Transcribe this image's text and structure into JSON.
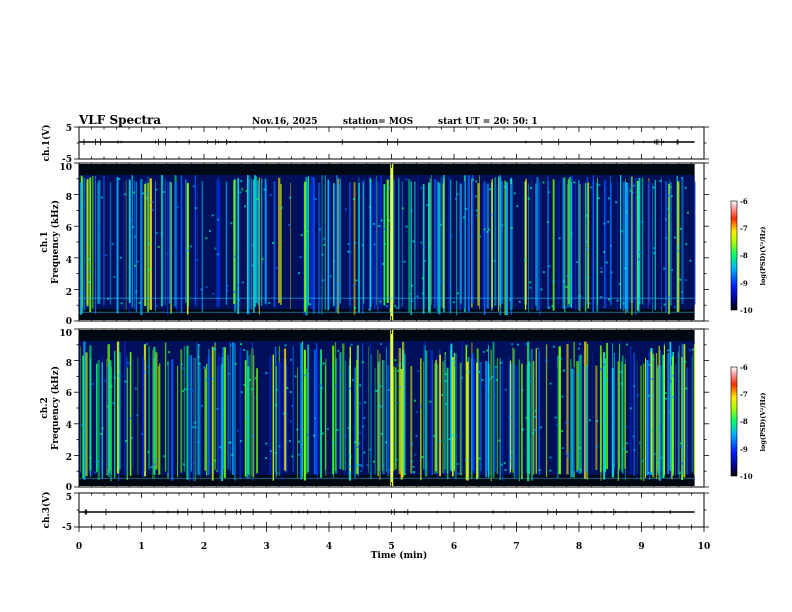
{
  "header": {
    "title": "VLF Spectra",
    "date": "Nov.16, 2025",
    "station": "station= MOS",
    "start": "start  UT  =   20: 50: 1"
  },
  "chart_data": [
    {
      "type": "line",
      "id": "ch1-waveform",
      "ylabel": "ch.1(V)",
      "ylim": [
        -5,
        5
      ],
      "yticks": [
        "5",
        "-5"
      ],
      "xlim": [
        0,
        10
      ],
      "series": [
        {
          "values_constant": 0
        }
      ]
    },
    {
      "type": "heatmap",
      "id": "ch1-spectrogram",
      "ylabel": "ch.1",
      "ylabel2": "Frequency (kHz)",
      "ylim": [
        0,
        10
      ],
      "yticks": [
        "0",
        "2",
        "4",
        "6",
        "8",
        "10"
      ],
      "xlim": [
        0,
        9.85
      ],
      "colorbar": {
        "range": [
          -10,
          -6
        ],
        "ticks": [
          "-6",
          "-7",
          "-8",
          "-9",
          "-10"
        ],
        "label": "log(PSD)(V²/Hz)"
      }
    },
    {
      "type": "heatmap",
      "id": "ch2-spectrogram",
      "ylabel": "ch.2",
      "ylabel2": "Frequency (kHz)",
      "ylim": [
        0,
        10
      ],
      "yticks": [
        "0",
        "2",
        "4",
        "6",
        "8",
        "10"
      ],
      "xlim": [
        0,
        9.85
      ],
      "colorbar": {
        "range": [
          -10,
          -6
        ],
        "ticks": [
          "-6",
          "-7",
          "-8",
          "-9",
          "-10"
        ],
        "label": "log(PSD)(V²/Hz)"
      }
    },
    {
      "type": "line",
      "id": "ch3-waveform",
      "ylabel": "ch.3(V)",
      "ylim": [
        -5,
        5
      ],
      "yticks": [
        "5",
        "-5"
      ],
      "xlim": [
        0,
        10
      ],
      "series": [
        {
          "values_constant": 0
        }
      ]
    }
  ],
  "xaxis": {
    "label": "Time (min)",
    "ticks": [
      "0",
      "1",
      "2",
      "3",
      "4",
      "5",
      "6",
      "7",
      "8",
      "9",
      "10"
    ]
  }
}
